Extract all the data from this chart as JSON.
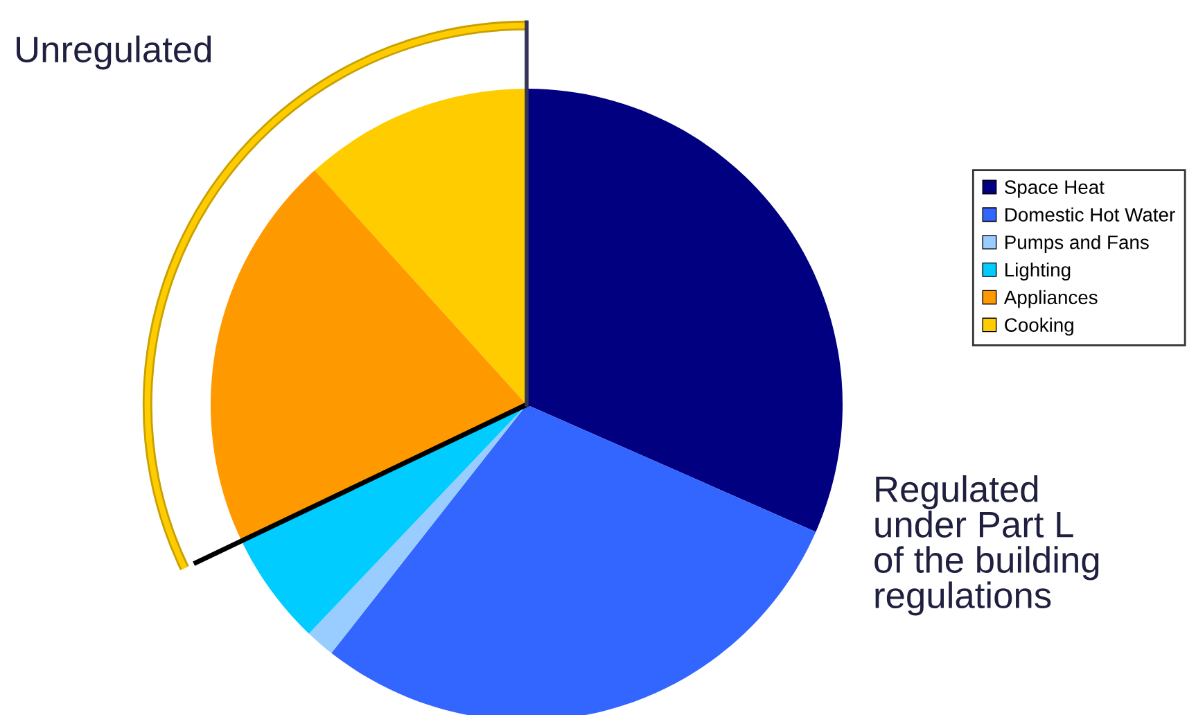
{
  "chart_data": {
    "type": "pie",
    "categories": [
      "Space Heat",
      "Domestic Hot Water",
      "Pumps and Fans",
      "Lighting",
      "Appliances",
      "Cooking"
    ],
    "values": [
      31.6,
      29.0,
      1.5,
      5.8,
      20.4,
      11.7
    ],
    "colors": [
      "#000080",
      "#3366ff",
      "#99ccff",
      "#00ccff",
      "#ff9900",
      "#ffcc00"
    ],
    "legend": "right",
    "annotations": [
      "Unregulated",
      "Regulated\nunder Part L\nof the building\nregulations"
    ]
  }
}
